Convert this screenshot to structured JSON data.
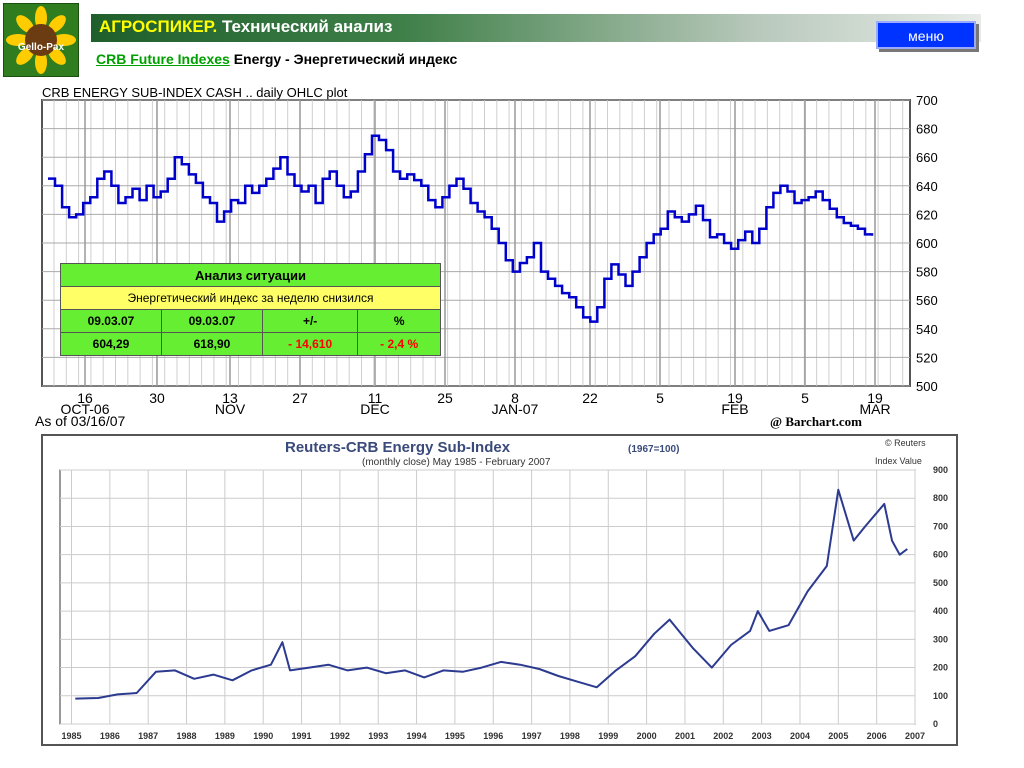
{
  "logo": {
    "text": "Gello-Pax",
    "icon": "sunflower-icon"
  },
  "header": {
    "brand": "АГРОСПИКЕР.",
    "title": "Технический анализ",
    "menu_label": "меню"
  },
  "subtitle": {
    "link": "CRB Future Indexes",
    "sector": "Energy -",
    "description": "Энергетический индекс"
  },
  "analysis": {
    "title": "Анализ ситуации",
    "summary": "Энергетический индекс за неделю снизился",
    "headers": [
      "09.03.07",
      "09.03.07",
      "+/-",
      "%"
    ],
    "values": [
      "604,29",
      "618,90",
      "- 14,610",
      "- 2,4 %"
    ]
  },
  "chart_data": [
    {
      "type": "line",
      "title": "CRB ENERGY SUB-INDEX CASH .. daily OHLC plot",
      "as_of": "As of 03/16/07",
      "source": "@ Barchart.com",
      "ylim": [
        500,
        700
      ],
      "yticks": [
        500,
        520,
        540,
        560,
        580,
        600,
        620,
        640,
        660,
        680,
        700
      ],
      "xticks": [
        {
          "day": "16",
          "month": "OCT-06"
        },
        {
          "day": "30",
          "month": ""
        },
        {
          "day": "13",
          "month": "NOV"
        },
        {
          "day": "27",
          "month": ""
        },
        {
          "day": "11",
          "month": "DEC"
        },
        {
          "day": "25",
          "month": ""
        },
        {
          "day": "8",
          "month": "JAN-07"
        },
        {
          "day": "22",
          "month": ""
        },
        {
          "day": "5",
          "month": ""
        },
        {
          "day": "19",
          "month": "FEB"
        },
        {
          "day": "5",
          "month": ""
        },
        {
          "day": "19",
          "month": "MAR"
        }
      ],
      "color": "#0000cc",
      "values": [
        645,
        640,
        625,
        618,
        620,
        628,
        632,
        645,
        650,
        640,
        628,
        632,
        638,
        630,
        640,
        632,
        636,
        645,
        660,
        655,
        648,
        642,
        632,
        628,
        615,
        622,
        630,
        628,
        640,
        635,
        640,
        645,
        652,
        660,
        648,
        640,
        636,
        640,
        628,
        645,
        650,
        640,
        632,
        636,
        650,
        662,
        675,
        672,
        665,
        650,
        645,
        648,
        644,
        640,
        630,
        625,
        632,
        640,
        645,
        638,
        628,
        622,
        618,
        610,
        600,
        588,
        580,
        586,
        590,
        600,
        580,
        575,
        570,
        565,
        562,
        555,
        548,
        545,
        555,
        575,
        585,
        578,
        570,
        580,
        590,
        600,
        606,
        610,
        622,
        618,
        615,
        620,
        626,
        616,
        604,
        606,
        600,
        596,
        602,
        608,
        600,
        610,
        625,
        635,
        640,
        636,
        628,
        630,
        632,
        636,
        630,
        624,
        618,
        614,
        612,
        610,
        606,
        605
      ]
    },
    {
      "type": "line",
      "title": "Reuters-CRB Energy Sub-Index",
      "base_note": "(1967=100)",
      "subtitle": "(monthly close) May 1985 - February 2007",
      "copyright": "© Reuters",
      "ylabel": "Index Value",
      "ylim": [
        0,
        900
      ],
      "yticks": [
        0,
        100,
        200,
        300,
        400,
        500,
        600,
        700,
        800,
        900
      ],
      "categories": [
        "1985",
        "1986",
        "1987",
        "1988",
        "1989",
        "1990",
        "1991",
        "1992",
        "1993",
        "1994",
        "1995",
        "1996",
        "1997",
        "1998",
        "1999",
        "2000",
        "2001",
        "2002",
        "2003",
        "2004",
        "2005",
        "2006",
        "2007"
      ],
      "color": "#2c3a90",
      "x": [
        1985.4,
        1986.0,
        1986.5,
        1987.0,
        1987.5,
        1988.0,
        1988.5,
        1989.0,
        1989.5,
        1990.0,
        1990.5,
        1990.8,
        1991.0,
        1991.5,
        1992.0,
        1992.5,
        1993.0,
        1993.5,
        1994.0,
        1994.5,
        1995.0,
        1995.5,
        1996.0,
        1996.5,
        1997.0,
        1997.5,
        1998.0,
        1998.5,
        1999.0,
        1999.5,
        2000.0,
        2000.5,
        2000.9,
        2001.5,
        2002.0,
        2002.5,
        2003.0,
        2003.2,
        2003.5,
        2004.0,
        2004.5,
        2005.0,
        2005.3,
        2005.7,
        2006.0,
        2006.5,
        2006.7,
        2006.9,
        2007.1
      ],
      "values": [
        90,
        92,
        105,
        110,
        185,
        190,
        160,
        175,
        155,
        190,
        210,
        290,
        190,
        200,
        210,
        190,
        200,
        180,
        190,
        165,
        190,
        185,
        200,
        220,
        210,
        195,
        170,
        150,
        130,
        190,
        240,
        320,
        370,
        270,
        200,
        280,
        330,
        400,
        330,
        350,
        470,
        560,
        830,
        650,
        700,
        780,
        650,
        600,
        620
      ]
    }
  ]
}
